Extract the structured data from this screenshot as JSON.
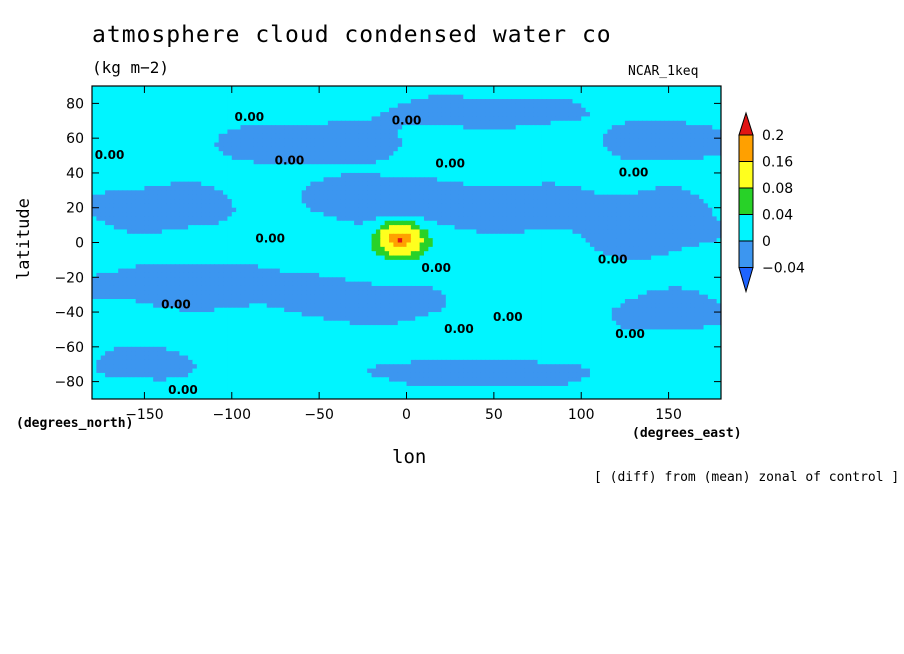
{
  "chart_data": {
    "type": "heatmap",
    "title": "atmosphere cloud condensed water co",
    "units_label": "(kg m−2)",
    "dataset_label": "NCAR_1keq",
    "xlabel": "lon",
    "ylabel": "latitude",
    "x_unit_label": "(degrees_east)",
    "y_unit_label": "(degrees_north)",
    "note": "[ (diff) from (mean) zonal of control ]",
    "xlim": [
      -180,
      180
    ],
    "ylim": [
      -90,
      90
    ],
    "x_ticks": [
      -150,
      -100,
      -50,
      0,
      50,
      100,
      150
    ],
    "x_tick_labels": [
      "−150",
      "−100",
      "−50",
      "0",
      "50",
      "100",
      "150"
    ],
    "y_ticks": [
      80,
      60,
      40,
      20,
      0,
      -20,
      -40,
      -60,
      -80
    ],
    "y_tick_labels": [
      "80",
      "60",
      "40",
      "20",
      "0",
      "−20",
      "−40",
      "−60",
      "−80"
    ],
    "colorbar": {
      "levels": [
        -0.04,
        0,
        0.04,
        0.08,
        0.16,
        0.2
      ],
      "labels": [
        "−0.04",
        "0",
        "0.04",
        "0.08",
        "0.16",
        "0.2"
      ],
      "colors": [
        "#1e64ff",
        "#3c96f0",
        "#00f5ff",
        "#28d228",
        "#ffff1e",
        "#ffa000",
        "#e11414"
      ]
    },
    "contour_labels": [
      {
        "text": "0.00",
        "lon": -90,
        "lat": 70
      },
      {
        "text": "0.00",
        "lon": 0,
        "lat": 68
      },
      {
        "text": "0.00",
        "lon": -170,
        "lat": 48
      },
      {
        "text": "0.00",
        "lon": -67,
        "lat": 45
      },
      {
        "text": "0.00",
        "lon": 25,
        "lat": 43
      },
      {
        "text": "0.00",
        "lon": 130,
        "lat": 38
      },
      {
        "text": "0.00",
        "lon": -78,
        "lat": 0
      },
      {
        "text": "0.00",
        "lon": 17,
        "lat": -17
      },
      {
        "text": "0.00",
        "lon": 118,
        "lat": -12
      },
      {
        "text": "0.00",
        "lon": -132,
        "lat": -38
      },
      {
        "text": "0.00",
        "lon": 30,
        "lat": -52
      },
      {
        "text": "0.00",
        "lon": 58,
        "lat": -45
      },
      {
        "text": "0.00",
        "lon": 128,
        "lat": -55
      },
      {
        "text": "0.00",
        "lon": -128,
        "lat": -87
      }
    ],
    "features": {
      "background_value": 0.02,
      "negative_regions": [
        {
          "lon": -60,
          "lat": 57,
          "rlon": 55,
          "rlat": 12
        },
        {
          "lon": 45,
          "lat": 75,
          "rlon": 60,
          "rlat": 9
        },
        {
          "lon": 150,
          "lat": 58,
          "rlon": 35,
          "rlat": 12
        },
        {
          "lon": -140,
          "lat": 20,
          "rlon": 45,
          "rlat": 14
        },
        {
          "lon": -120,
          "lat": -25,
          "rlon": 65,
          "rlat": 14
        },
        {
          "lon": -20,
          "lat": 25,
          "rlon": 35,
          "rlat": 14
        },
        {
          "lon": 55,
          "lat": 20,
          "rlon": 50,
          "rlat": 14
        },
        {
          "lon": 140,
          "lat": 10,
          "rlon": 40,
          "rlat": 20
        },
        {
          "lon": -20,
          "lat": -35,
          "rlon": 40,
          "rlat": 12
        },
        {
          "lon": 150,
          "lat": -40,
          "rlon": 35,
          "rlat": 12
        },
        {
          "lon": -150,
          "lat": -70,
          "rlon": 30,
          "rlat": 10
        },
        {
          "lon": 40,
          "lat": -75,
          "rlon": 70,
          "rlat": 8
        }
      ],
      "positive_peak": {
        "lon": -4,
        "lat": 2,
        "value": 0.19
      }
    }
  }
}
